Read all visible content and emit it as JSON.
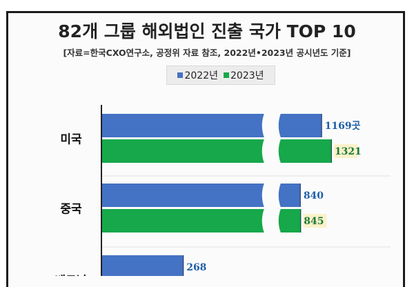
{
  "chart_data": {
    "type": "bar",
    "orientation": "horizontal",
    "axis_break": true,
    "title": "82개 그룹 해외법인 진출 국가 TOP 10",
    "subtitle": "[자료=한국CXO연구소, 공정위 자료 참조, 2022년•2023년 공시년도 기준]",
    "legend_position": "top-center",
    "categories": [
      "미국",
      "중국",
      "베트남"
    ],
    "series": [
      {
        "name": "2022년",
        "color": "#4472c4",
        "values": [
          1169,
          840,
          268
        ],
        "labels": [
          "1169곳",
          "840",
          "268"
        ]
      },
      {
        "name": "2023년",
        "color": "#16a84a",
        "values": [
          1321,
          845,
          null
        ],
        "labels": [
          "1321",
          "845",
          ""
        ]
      }
    ],
    "category_labels_visible": [
      "미국",
      "중국",
      "베트남"
    ]
  }
}
